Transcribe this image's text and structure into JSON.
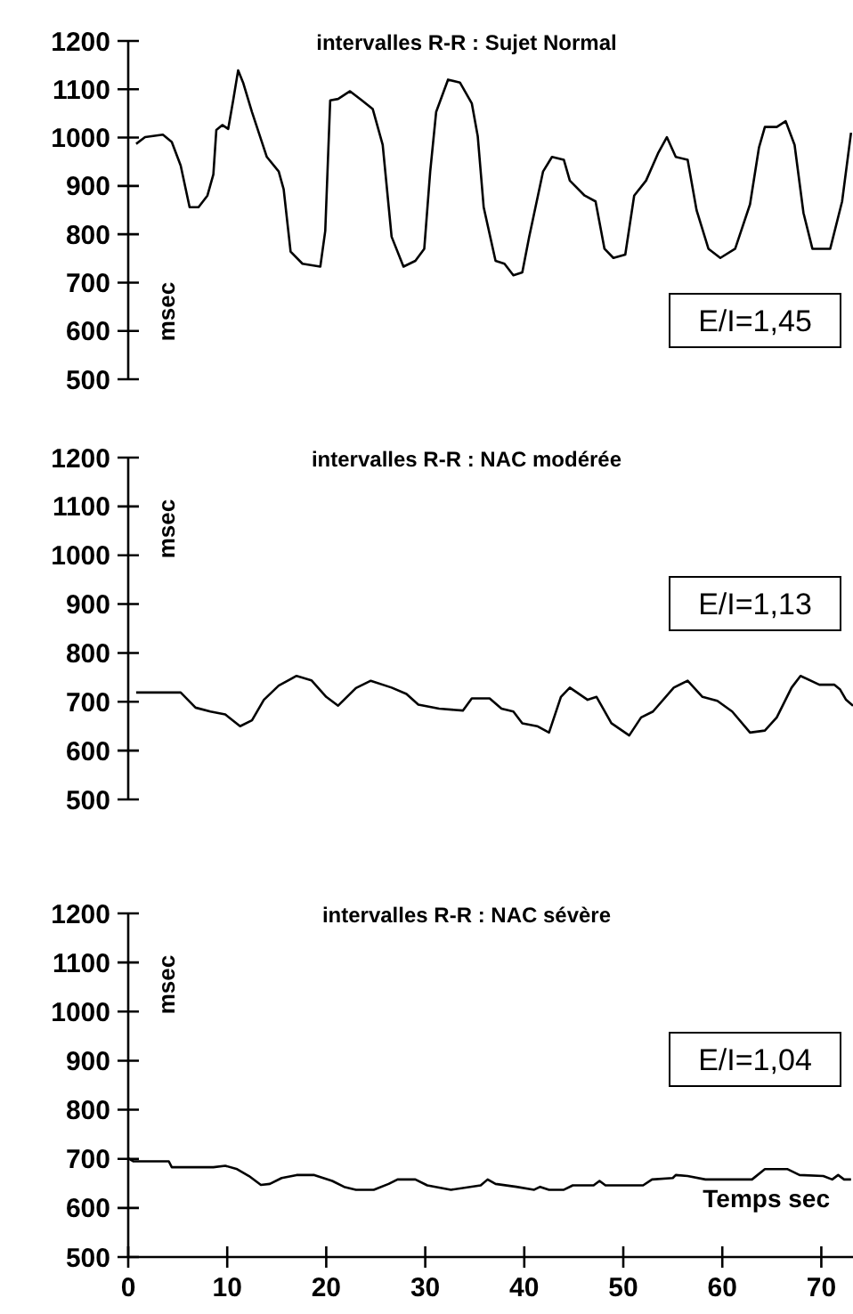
{
  "chart_data": [
    {
      "type": "line",
      "title": "intervalles R-R : Sujet Normal",
      "ylabel": "msec",
      "annotations": [
        "E/I=1,45"
      ],
      "xlim": [
        0,
        73.2
      ],
      "ylim": [
        500,
        1200
      ],
      "yticks": [
        500,
        600,
        700,
        800,
        900,
        1000,
        1100,
        1200
      ],
      "tick_labels": "y",
      "grid": false,
      "marker": "none",
      "line_style": "solid",
      "series": [
        {
          "color": "#000000",
          "x": [
            0.8,
            1.7,
            3.5,
            4.4,
            5.3,
            6.2,
            7.1,
            8,
            8.6,
            8.9,
            9.5,
            10.1,
            10.6,
            11.1,
            11.6,
            12.5,
            14,
            15.2,
            15.7,
            16.4,
            17.6,
            19.4,
            19.9,
            20.4,
            21.2,
            22.4,
            23.6,
            24.7,
            25.7,
            26.6,
            27.8,
            29,
            29.9,
            30.5,
            31.1,
            32.3,
            33.5,
            34.7,
            35.3,
            35.9,
            37.1,
            38,
            38.9,
            39.8,
            40.5,
            41.9,
            42.8,
            44,
            44.6,
            46.1,
            47.2,
            48.1,
            49,
            50.2,
            51.1,
            52.3,
            53.5,
            54.4,
            55.3,
            56.5,
            57.4,
            58.6,
            59.8,
            61.3,
            62.8,
            63.7,
            64.3,
            65.5,
            66.4,
            67.3,
            68.2,
            69.1,
            70.9,
            72.1,
            73
          ],
          "values": [
            987,
            1001,
            1006,
            991,
            942,
            856,
            856,
            880,
            924,
            1016,
            1026,
            1018,
            1077,
            1139,
            1114,
            1053,
            960,
            930,
            893,
            764,
            739,
            733,
            807,
            1077,
            1080,
            1096,
            1077,
            1059,
            985,
            795,
            733,
            745,
            770,
            930,
            1053,
            1120,
            1114,
            1071,
            1003,
            856,
            745,
            739,
            715,
            721,
            795,
            930,
            960,
            954,
            911,
            880,
            868,
            770,
            751,
            758,
            880,
            911,
            967,
            1001,
            960,
            954,
            850,
            770,
            751,
            770,
            862,
            979,
            1022,
            1022,
            1034,
            985,
            844,
            770,
            770,
            868,
            1010
          ]
        }
      ]
    },
    {
      "type": "line",
      "title": "intervalles R-R :  NAC modérée",
      "ylabel": "msec",
      "annotations": [
        "E/I=1,13"
      ],
      "xlim": [
        0,
        73.2
      ],
      "ylim": [
        500,
        1200
      ],
      "yticks": [
        500,
        600,
        700,
        800,
        900,
        1000,
        1100,
        1200
      ],
      "tick_labels": "y",
      "grid": false,
      "marker": "none",
      "line_style": "solid",
      "series": [
        {
          "color": "#000000",
          "x": [
            0.8,
            5.3,
            6.8,
            8.3,
            9.8,
            11.3,
            12.5,
            13.7,
            15.2,
            17,
            18.5,
            20,
            21.2,
            23,
            24.5,
            26.6,
            28.1,
            29.3,
            31.4,
            33.8,
            34.7,
            36.5,
            37.7,
            38.9,
            39.8,
            41.3,
            42.5,
            43.7,
            44.6,
            46.4,
            47.3,
            48.8,
            50.6,
            51.8,
            53,
            55.1,
            56.5,
            58,
            59.5,
            61,
            62.8,
            64.3,
            65.5,
            67,
            67.9,
            69.8,
            71.3,
            71.9,
            72.5,
            73.2
          ],
          "values": [
            719,
            719,
            688,
            680,
            674,
            650,
            662,
            704,
            733,
            753,
            744,
            710,
            692,
            728,
            743,
            729,
            716,
            694,
            686,
            682,
            707,
            707,
            686,
            680,
            656,
            650,
            637,
            710,
            729,
            704,
            710,
            656,
            631,
            668,
            680,
            729,
            743,
            710,
            702,
            680,
            637,
            641,
            668,
            729,
            753,
            735,
            735,
            725,
            704,
            692
          ]
        }
      ]
    },
    {
      "type": "line",
      "title": "intervalles R-R :  NAC sévère",
      "ylabel": "msec",
      "xlabel": "Temps sec",
      "annotations": [
        "E/I=1,04"
      ],
      "xlim": [
        0,
        73.2
      ],
      "ylim": [
        500,
        1200
      ],
      "yticks": [
        500,
        600,
        700,
        800,
        900,
        1000,
        1100,
        1200
      ],
      "xticks": [
        0,
        10,
        20,
        30,
        40,
        50,
        60,
        70
      ],
      "grid": false,
      "marker": "none",
      "line_style": "solid",
      "series": [
        {
          "color": "#000000",
          "x": [
            0,
            0.5,
            4.1,
            4.4,
            8.6,
            9.8,
            11,
            12.2,
            13.4,
            14.3,
            15.5,
            17,
            18.8,
            20.6,
            21.8,
            23,
            24.8,
            26.3,
            27.2,
            29,
            30.2,
            32.6,
            35.6,
            36.3,
            37.1,
            39.2,
            41,
            41.6,
            42.5,
            44,
            44.9,
            47,
            47.6,
            48.2,
            52,
            52.9,
            55,
            55.3,
            56.5,
            58.3,
            63,
            64.3,
            66.6,
            67.8,
            70.2,
            71.1,
            71.7,
            72.3,
            73
          ],
          "values": [
            701,
            695,
            695,
            683,
            683,
            686,
            679,
            665,
            647,
            649,
            661,
            667,
            667,
            655,
            643,
            637,
            637,
            649,
            658,
            658,
            646,
            637,
            646,
            658,
            649,
            643,
            637,
            643,
            637,
            637,
            646,
            646,
            655,
            646,
            646,
            658,
            661,
            667,
            665,
            658,
            658,
            679,
            679,
            667,
            665,
            658,
            667,
            658,
            658
          ]
        }
      ]
    }
  ]
}
